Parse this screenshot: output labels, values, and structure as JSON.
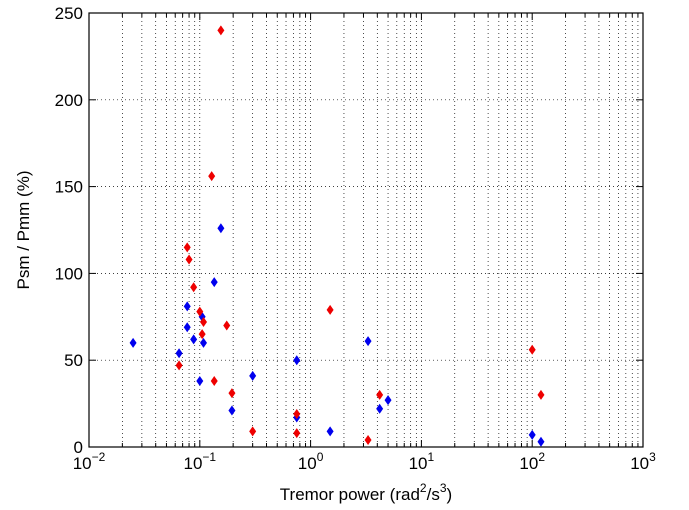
{
  "chart_data": {
    "type": "scatter",
    "xscale": "log",
    "xlim": [
      0.01,
      1000
    ],
    "ylim": [
      0,
      250
    ],
    "grid": true,
    "xlabel": {
      "base": "Tremor power (rad",
      "sup1": "2",
      "mid": "/s",
      "sup2": "3",
      "end": ")"
    },
    "ylabel": "Psm / Pmm (%)",
    "xticks": [
      {
        "value": 0.01,
        "base": "10",
        "exp": "−2"
      },
      {
        "value": 0.1,
        "base": "10",
        "exp": "−1"
      },
      {
        "value": 1,
        "base": "10",
        "exp": "0"
      },
      {
        "value": 10,
        "base": "10",
        "exp": "1"
      },
      {
        "value": 100,
        "base": "10",
        "exp": "2"
      },
      {
        "value": 1000,
        "base": "10",
        "exp": "3"
      }
    ],
    "yticks": [
      {
        "value": 0,
        "label": "0"
      },
      {
        "value": 50,
        "label": "50"
      },
      {
        "value": 100,
        "label": "100"
      },
      {
        "value": 150,
        "label": "150"
      },
      {
        "value": 200,
        "label": "200"
      },
      {
        "value": 250,
        "label": "250"
      }
    ],
    "series": [
      {
        "color": "#0000ee",
        "marker": "diamond",
        "points": [
          {
            "x": 0.025,
            "y": 60
          },
          {
            "x": 0.065,
            "y": 54
          },
          {
            "x": 0.077,
            "y": 81
          },
          {
            "x": 0.077,
            "y": 69
          },
          {
            "x": 0.088,
            "y": 62
          },
          {
            "x": 0.1,
            "y": 38
          },
          {
            "x": 0.105,
            "y": 75
          },
          {
            "x": 0.108,
            "y": 60
          },
          {
            "x": 0.135,
            "y": 95
          },
          {
            "x": 0.155,
            "y": 126
          },
          {
            "x": 0.195,
            "y": 21
          },
          {
            "x": 0.3,
            "y": 41
          },
          {
            "x": 0.75,
            "y": 50
          },
          {
            "x": 0.75,
            "y": 17
          },
          {
            "x": 1.5,
            "y": 9
          },
          {
            "x": 3.3,
            "y": 61
          },
          {
            "x": 4.2,
            "y": 22
          },
          {
            "x": 5.0,
            "y": 27
          },
          {
            "x": 100,
            "y": 7
          },
          {
            "x": 120,
            "y": 3
          }
        ]
      },
      {
        "color": "#ee0000",
        "marker": "diamond",
        "points": [
          {
            "x": 0.065,
            "y": 47
          },
          {
            "x": 0.077,
            "y": 115
          },
          {
            "x": 0.08,
            "y": 108
          },
          {
            "x": 0.088,
            "y": 92
          },
          {
            "x": 0.1,
            "y": 78
          },
          {
            "x": 0.105,
            "y": 65
          },
          {
            "x": 0.108,
            "y": 72
          },
          {
            "x": 0.128,
            "y": 156
          },
          {
            "x": 0.135,
            "y": 38
          },
          {
            "x": 0.155,
            "y": 240
          },
          {
            "x": 0.175,
            "y": 70
          },
          {
            "x": 0.195,
            "y": 31
          },
          {
            "x": 0.3,
            "y": 9
          },
          {
            "x": 0.75,
            "y": 19
          },
          {
            "x": 0.75,
            "y": 8
          },
          {
            "x": 1.5,
            "y": 79
          },
          {
            "x": 3.3,
            "y": 4
          },
          {
            "x": 4.2,
            "y": 30
          },
          {
            "x": 100,
            "y": 56
          },
          {
            "x": 120,
            "y": 30
          }
        ]
      }
    ]
  }
}
